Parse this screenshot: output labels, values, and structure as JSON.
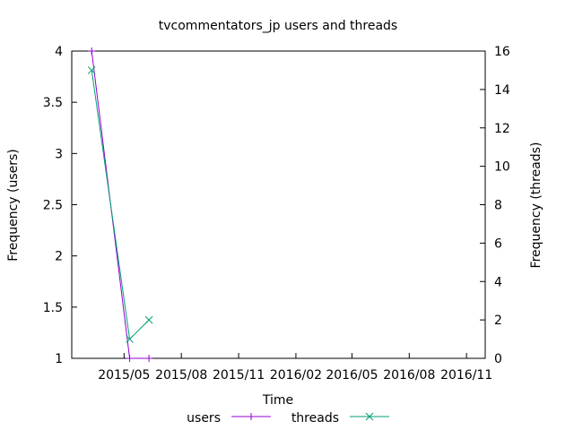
{
  "chart_data": {
    "type": "line",
    "title": "tvcommentators_jp users and threads",
    "xlabel": "Time",
    "ylabel": "Frequency (users)",
    "y2label": "Frequency (threads)",
    "x_ticks": [
      "2015/05",
      "2015/08",
      "2015/11",
      "2016/02",
      "2016/05",
      "2016/08",
      "2016/11"
    ],
    "x_tick_dates": [
      "2015-05-01",
      "2015-08-01",
      "2015-11-01",
      "2016-02-01",
      "2016-05-01",
      "2016-08-01",
      "2016-11-01"
    ],
    "xlim": [
      "2015-02-06",
      "2016-12-01"
    ],
    "y_ticks": [
      "1",
      "1.5",
      "2",
      "2.5",
      "3",
      "3.5",
      "4"
    ],
    "ylim": [
      1,
      4
    ],
    "y2_ticks": [
      "0",
      "2",
      "4",
      "6",
      "8",
      "10",
      "12",
      "14",
      "16"
    ],
    "y2lim": [
      0,
      16
    ],
    "legend_position": "bottom-center",
    "grid": false,
    "series": [
      {
        "name": "users",
        "axis": "y",
        "color": "#9400d3",
        "marker": "plus",
        "points": [
          {
            "x": "2015-03-10",
            "y": 4
          },
          {
            "x": "2015-05-10",
            "y": 1
          },
          {
            "x": "2015-06-10",
            "y": 1
          }
        ]
      },
      {
        "name": "threads",
        "axis": "y2",
        "color": "#009e73",
        "marker": "cross",
        "points": [
          {
            "x": "2015-03-10",
            "y": 15
          },
          {
            "x": "2015-05-10",
            "y": 1
          },
          {
            "x": "2015-06-10",
            "y": 2
          }
        ]
      }
    ]
  }
}
